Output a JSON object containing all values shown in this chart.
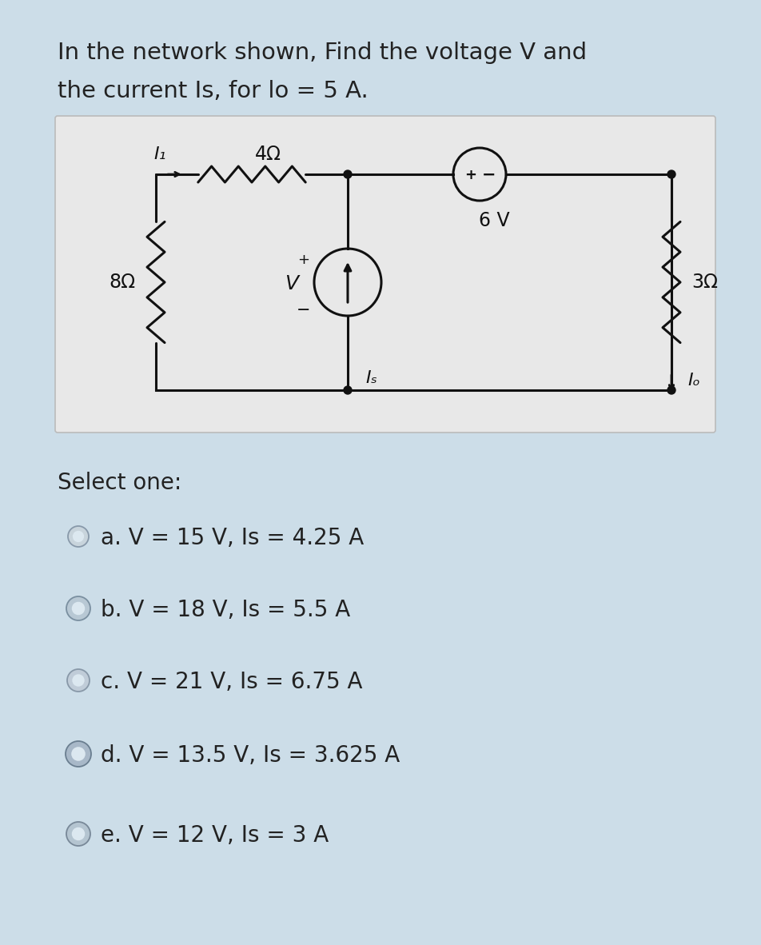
{
  "title_line1": "In the network shown, Find the voltage V and",
  "title_line2": "the current Is, for lo = 5 A.",
  "bg_color": "#ccdde8",
  "circuit_bg": "#e8e8e8",
  "circuit_border": "#bbbbbb",
  "text_color": "#222222",
  "wire_color": "#111111",
  "select_label": "Select one:",
  "options": [
    "a. V = 15 V, Is = 4.25 A",
    "b. V = 18 V, Is = 5.5 A",
    "c. V = 21 V, Is = 6.75 A",
    "d. V = 13.5 V, Is = 3.625 A",
    "e. V = 12 V, Is = 3 A"
  ],
  "circuit_label_8ohm": "8Ω",
  "circuit_label_4ohm": "4Ω",
  "circuit_label_3ohm": "3Ω",
  "circuit_label_6V": "6 V",
  "circuit_label_I1": "I₁",
  "circuit_label_Is": "Iₛ",
  "circuit_label_Io": "Iₒ",
  "circuit_label_V": "V",
  "title_fontsize": 21,
  "option_fontsize": 20,
  "label_fontsize": 16
}
